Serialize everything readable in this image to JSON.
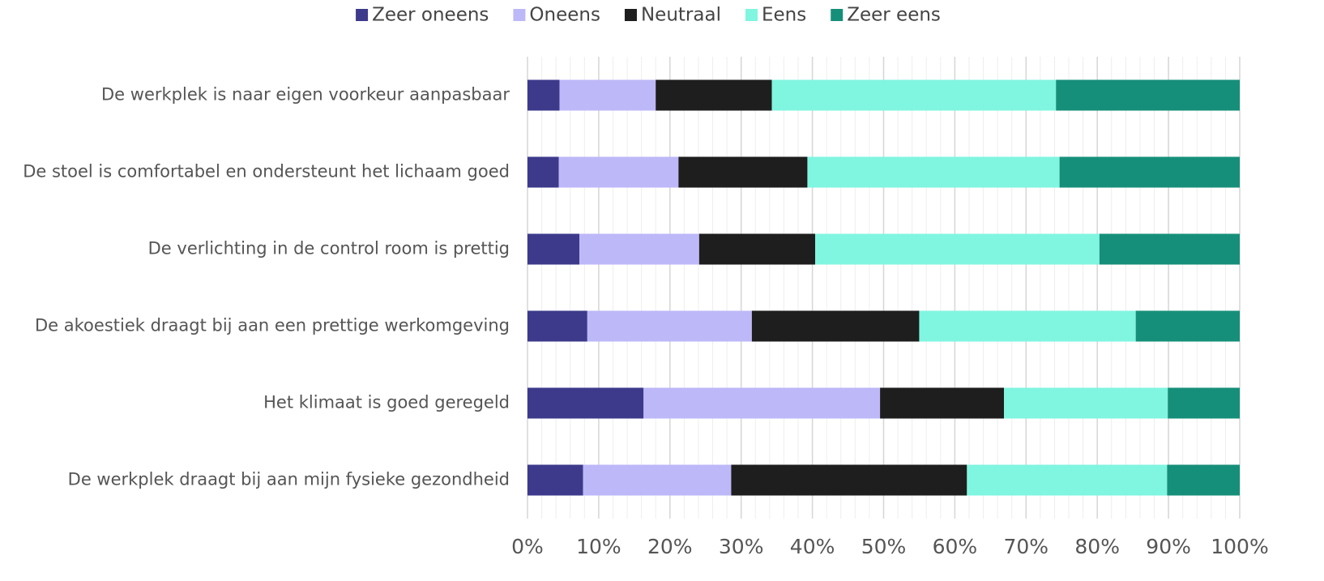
{
  "chart_data": {
    "type": "stacked_barh",
    "categories": [
      "De werkplek is naar eigen voorkeur aanpasbaar",
      "De stoel is comfortabel en ondersteunt het lichaam goed",
      "De verlichting in de control room is prettig",
      "De akoestiek draagt bij aan een prettige werkomgeving",
      "Het klimaat is goed geregeld",
      "De werkplek draagt bij aan mijn fysieke gezondheid"
    ],
    "series": [
      {
        "name": "Zeer oneens",
        "color": "#3d3a8c",
        "values": [
          4.5,
          4.4,
          7.3,
          8.4,
          16.3,
          7.8
        ]
      },
      {
        "name": "Oneens",
        "color": "#bdb8f8",
        "values": [
          13.5,
          16.8,
          16.8,
          23.1,
          33.2,
          20.8
        ]
      },
      {
        "name": "Neutraal",
        "color": "#1e1e1e",
        "values": [
          16.3,
          18.1,
          16.3,
          23.5,
          17.4,
          33.1
        ]
      },
      {
        "name": "Eens",
        "color": "#80f5e0",
        "values": [
          39.9,
          35.4,
          39.9,
          30.4,
          23.0,
          28.1
        ]
      },
      {
        "name": "Zeer eens",
        "color": "#168f7a",
        "values": [
          25.8,
          25.3,
          19.7,
          14.6,
          10.1,
          10.2
        ]
      }
    ],
    "xlim": [
      0,
      100
    ],
    "xticks": [
      {
        "value": 0,
        "label": "0%"
      },
      {
        "value": 10,
        "label": "10%"
      },
      {
        "value": 20,
        "label": "20%"
      },
      {
        "value": 30,
        "label": "30%"
      },
      {
        "value": 40,
        "label": "40%"
      },
      {
        "value": 50,
        "label": "50%"
      },
      {
        "value": 60,
        "label": "60%"
      },
      {
        "value": 70,
        "label": "70%"
      },
      {
        "value": 80,
        "label": "80%"
      },
      {
        "value": 90,
        "label": "90%"
      },
      {
        "value": 100,
        "label": "100%"
      }
    ],
    "xminorticks": [
      2,
      4,
      6,
      8,
      12,
      14,
      16,
      18,
      22,
      24,
      26,
      28,
      32,
      34,
      36,
      38,
      42,
      44,
      46,
      48,
      52,
      54,
      56,
      58,
      62,
      64,
      66,
      68,
      72,
      74,
      76,
      78,
      82,
      84,
      86,
      88,
      92,
      94,
      96,
      98
    ],
    "grid": true,
    "legend": "top"
  }
}
